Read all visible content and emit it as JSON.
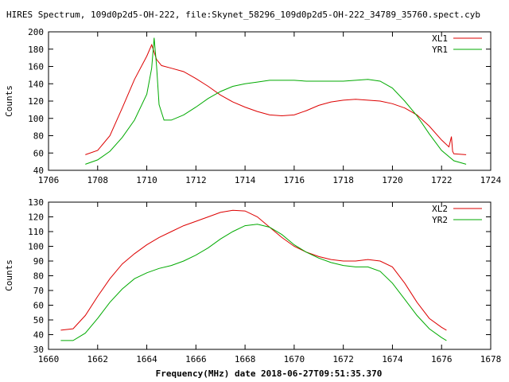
{
  "title": "HIRES Spectrum, 109d0p2d5-OH-222, file:Skynet_58296_109d0p2d5-OH-222_34789_35760.spect.cyb",
  "xlabel": "Frequency(MHz) date 2018-06-27T09:51:35.370",
  "colors": {
    "red": "#dd0000",
    "green": "#00aa00",
    "frame": "#000000"
  },
  "chart_data": [
    {
      "type": "line",
      "ylabel": "Counts",
      "xlim": [
        1706,
        1724
      ],
      "ylim": [
        40,
        200
      ],
      "xticks": [
        "1706",
        "1708",
        "1710",
        "1712",
        "1714",
        "1716",
        "1718",
        "1720",
        "1722",
        "1724"
      ],
      "yticks": [
        "40",
        "60",
        "80",
        "100",
        "120",
        "140",
        "160",
        "180",
        "200"
      ],
      "grid": false,
      "legend": "top-right",
      "series": [
        {
          "name": "XL1",
          "color": "#dd0000",
          "points": [
            [
              1707.5,
              58
            ],
            [
              1708.0,
              63
            ],
            [
              1708.5,
              80
            ],
            [
              1709.0,
              112
            ],
            [
              1709.5,
              145
            ],
            [
              1710.0,
              172
            ],
            [
              1710.2,
              185
            ],
            [
              1710.4,
              168
            ],
            [
              1710.6,
              161
            ],
            [
              1711.0,
              158
            ],
            [
              1711.5,
              154
            ],
            [
              1712.0,
              146
            ],
            [
              1712.5,
              137
            ],
            [
              1713.0,
              127
            ],
            [
              1713.5,
              119
            ],
            [
              1714.0,
              113
            ],
            [
              1714.5,
              108
            ],
            [
              1715.0,
              104
            ],
            [
              1715.5,
              103
            ],
            [
              1716.0,
              104
            ],
            [
              1716.5,
              109
            ],
            [
              1717.0,
              115
            ],
            [
              1717.5,
              119
            ],
            [
              1718.0,
              121
            ],
            [
              1718.5,
              122
            ],
            [
              1719.0,
              121
            ],
            [
              1719.5,
              120
            ],
            [
              1720.0,
              117
            ],
            [
              1720.5,
              112
            ],
            [
              1721.0,
              104
            ],
            [
              1721.5,
              91
            ],
            [
              1722.0,
              75
            ],
            [
              1722.3,
              67
            ],
            [
              1722.4,
              79
            ],
            [
              1722.45,
              62
            ],
            [
              1722.5,
              59
            ],
            [
              1723.0,
              58
            ]
          ]
        },
        {
          "name": "YR1",
          "color": "#00aa00",
          "points": [
            [
              1707.5,
              47
            ],
            [
              1708.0,
              52
            ],
            [
              1708.5,
              62
            ],
            [
              1709.0,
              78
            ],
            [
              1709.5,
              98
            ],
            [
              1710.0,
              128
            ],
            [
              1710.2,
              158
            ],
            [
              1710.3,
              193
            ],
            [
              1710.4,
              160
            ],
            [
              1710.5,
              116
            ],
            [
              1710.7,
              98
            ],
            [
              1711.0,
              98
            ],
            [
              1711.5,
              104
            ],
            [
              1712.0,
              113
            ],
            [
              1712.5,
              123
            ],
            [
              1713.0,
              131
            ],
            [
              1713.5,
              137
            ],
            [
              1714.0,
              140
            ],
            [
              1714.5,
              142
            ],
            [
              1715.0,
              144
            ],
            [
              1716.0,
              144
            ],
            [
              1716.5,
              143
            ],
            [
              1717.0,
              143
            ],
            [
              1718.0,
              143
            ],
            [
              1718.5,
              144
            ],
            [
              1719.0,
              145
            ],
            [
              1719.5,
              143
            ],
            [
              1720.0,
              135
            ],
            [
              1720.5,
              120
            ],
            [
              1721.0,
              103
            ],
            [
              1721.5,
              82
            ],
            [
              1722.0,
              63
            ],
            [
              1722.5,
              51
            ],
            [
              1723.0,
              47
            ]
          ]
        }
      ]
    },
    {
      "type": "line",
      "ylabel": "Counts",
      "xlim": [
        1660,
        1678
      ],
      "ylim": [
        30,
        130
      ],
      "xticks": [
        "1660",
        "1662",
        "1664",
        "1666",
        "1668",
        "1670",
        "1672",
        "1674",
        "1676",
        "1678"
      ],
      "yticks": [
        "30",
        "40",
        "50",
        "60",
        "70",
        "80",
        "90",
        "100",
        "110",
        "120",
        "130"
      ],
      "grid": false,
      "legend": "top-right",
      "series": [
        {
          "name": "XL2",
          "color": "#dd0000",
          "points": [
            [
              1660.5,
              43
            ],
            [
              1661.0,
              44
            ],
            [
              1661.5,
              53
            ],
            [
              1662.0,
              66
            ],
            [
              1662.5,
              78
            ],
            [
              1663.0,
              88
            ],
            [
              1663.5,
              95
            ],
            [
              1664.0,
              101
            ],
            [
              1664.5,
              106
            ],
            [
              1665.0,
              110
            ],
            [
              1665.5,
              114
            ],
            [
              1666.0,
              117
            ],
            [
              1666.5,
              120
            ],
            [
              1667.0,
              123
            ],
            [
              1667.5,
              124.5
            ],
            [
              1668.0,
              124
            ],
            [
              1668.5,
              120
            ],
            [
              1669.0,
              113
            ],
            [
              1669.5,
              106
            ],
            [
              1670.0,
              100
            ],
            [
              1670.5,
              96
            ],
            [
              1671.0,
              93
            ],
            [
              1671.5,
              91
            ],
            [
              1672.0,
              90
            ],
            [
              1672.5,
              90
            ],
            [
              1673.0,
              91
            ],
            [
              1673.5,
              90
            ],
            [
              1674.0,
              86
            ],
            [
              1674.5,
              75
            ],
            [
              1675.0,
              62
            ],
            [
              1675.5,
              51
            ],
            [
              1676.0,
              45
            ],
            [
              1676.2,
              43
            ]
          ]
        },
        {
          "name": "YR2",
          "color": "#00aa00",
          "points": [
            [
              1660.5,
              36
            ],
            [
              1661.0,
              36
            ],
            [
              1661.5,
              41
            ],
            [
              1662.0,
              51
            ],
            [
              1662.5,
              62
            ],
            [
              1663.0,
              71
            ],
            [
              1663.5,
              78
            ],
            [
              1664.0,
              82
            ],
            [
              1664.5,
              85
            ],
            [
              1665.0,
              87
            ],
            [
              1665.5,
              90
            ],
            [
              1666.0,
              94
            ],
            [
              1666.5,
              99
            ],
            [
              1667.0,
              105
            ],
            [
              1667.5,
              110
            ],
            [
              1668.0,
              114
            ],
            [
              1668.5,
              115
            ],
            [
              1669.0,
              113
            ],
            [
              1669.5,
              108
            ],
            [
              1670.0,
              101
            ],
            [
              1670.5,
              96
            ],
            [
              1671.0,
              92
            ],
            [
              1671.5,
              89
            ],
            [
              1672.0,
              87
            ],
            [
              1672.5,
              86
            ],
            [
              1673.0,
              86
            ],
            [
              1673.5,
              83
            ],
            [
              1674.0,
              75
            ],
            [
              1674.5,
              64
            ],
            [
              1675.0,
              53
            ],
            [
              1675.5,
              44
            ],
            [
              1676.0,
              38
            ],
            [
              1676.2,
              36
            ]
          ]
        }
      ]
    }
  ]
}
